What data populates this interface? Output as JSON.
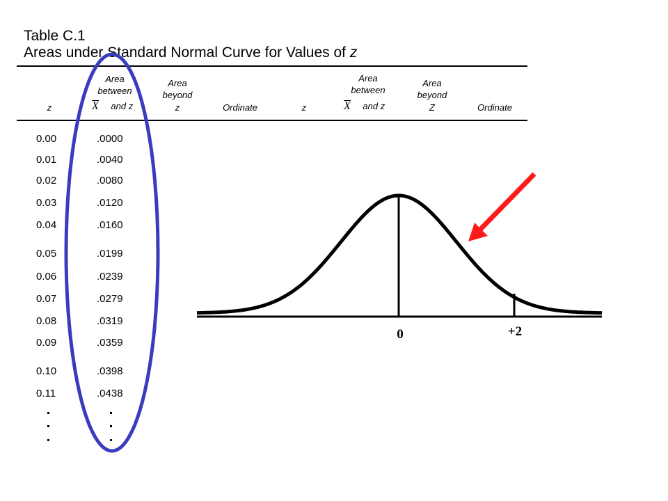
{
  "title_line1": "Table C.1",
  "title_line2_main": "Areas under Standard Normal Curve for Values of ",
  "title_line2_var": "z",
  "headers": {
    "z": "z",
    "area_between_line1": "Area",
    "area_between_line2": "between",
    "x_symbol": "X",
    "and_z": "and z",
    "area_beyond_line1": "Area",
    "area_beyond_line2": "beyond",
    "beyond_z_left": "z",
    "beyond_z_right": "Z",
    "ordinate": "Ordinate"
  },
  "rows": [
    {
      "z": "0.00",
      "area": ".0000"
    },
    {
      "z": "0.01",
      "area": ".0040"
    },
    {
      "z": "0.02",
      "area": ".0080"
    },
    {
      "z": "0.03",
      "area": ".0120"
    },
    {
      "z": "0.04",
      "area": ".0160"
    },
    {
      "z": "0.05",
      "area": ".0199"
    },
    {
      "z": "0.06",
      "area": ".0239"
    },
    {
      "z": "0.07",
      "area": ".0279"
    },
    {
      "z": "0.08",
      "area": ".0319"
    },
    {
      "z": "0.09",
      "area": ".0359"
    },
    {
      "z": "0.10",
      "area": ".0398"
    },
    {
      "z": "0.11",
      "area": ".0438"
    }
  ],
  "curve": {
    "center_label": "0",
    "marker_label": "+2"
  },
  "colors": {
    "highlight_ellipse": "#3b3bbf",
    "arrow": "#ff1a1a"
  }
}
